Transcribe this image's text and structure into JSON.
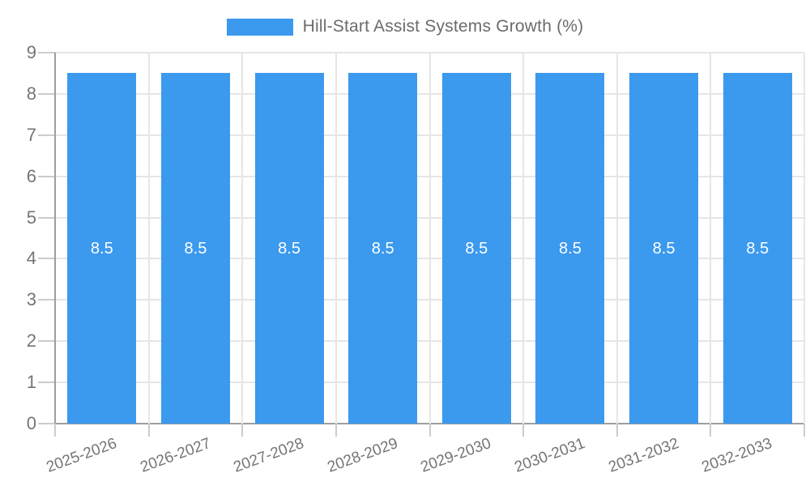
{
  "legend": {
    "label": "Hill-Start Assist Systems Growth (%)"
  },
  "colors": {
    "bar": "#3b99ee",
    "grid": "#e6e6e6",
    "tick": "#cccccc",
    "axis": "#9e9e9e",
    "tick_text": "#757575",
    "value_label": "#ffffff",
    "legend_text": "#6b6b6b"
  },
  "chart_data": {
    "type": "bar",
    "title": "Hill-Start Assist Systems Growth (%)",
    "categories": [
      "2025-2026",
      "2026-2027",
      "2027-2028",
      "2028-2029",
      "2029-2030",
      "2030-2031",
      "2031-2032",
      "2032-2033"
    ],
    "values": [
      8.5,
      8.5,
      8.5,
      8.5,
      8.5,
      8.5,
      8.5,
      8.5
    ],
    "value_labels": [
      "8.5",
      "8.5",
      "8.5",
      "8.5",
      "8.5",
      "8.5",
      "8.5",
      "8.5"
    ],
    "xlabel": "",
    "ylabel": "",
    "ylim": [
      0,
      9
    ],
    "yticks": [
      0,
      1,
      2,
      3,
      4,
      5,
      6,
      7,
      8,
      9
    ],
    "grid": true,
    "legend_position": "top",
    "bar_label_position": "middle",
    "x_label_rotation_deg": -20
  }
}
